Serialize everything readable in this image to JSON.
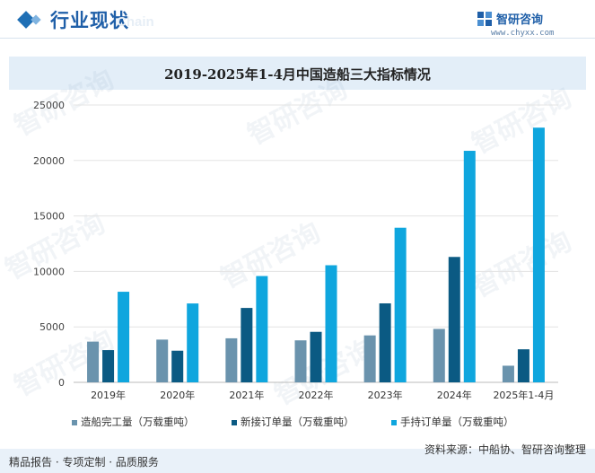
{
  "header": {
    "title": "行业现状",
    "ghost_text": "Chain"
  },
  "logo": {
    "name": "智研咨询",
    "url": "www.chyxx.com",
    "icon": "zhiyan-logo-icon"
  },
  "watermark": "智研咨询",
  "footer": {
    "left": "精品报告 · 专项定制 · 品质服务",
    "right": "资料来源：中船协、智研咨询整理"
  },
  "chart_data": {
    "type": "bar",
    "title": "2019-2025年1-4月中国造船三大指标情况",
    "categories": [
      "2019年",
      "2020年",
      "2021年",
      "2022年",
      "2023年",
      "2024年",
      "2025年1-4月"
    ],
    "series": [
      {
        "name": "造船完工量（万载重吨）",
        "color": "#6a93ad",
        "values": [
          3672,
          3853,
          3970,
          3786,
          4232,
          4818,
          1500
        ]
      },
      {
        "name": "新接订单量（万载重吨）",
        "color": "#0b5a83",
        "values": [
          2907,
          2853,
          6707,
          4552,
          7120,
          11305,
          2980
        ]
      },
      {
        "name": "手持订单量（万载重吨）",
        "color": "#0fa6de",
        "values": [
          8166,
          7111,
          9584,
          10557,
          13939,
          20872,
          22960
        ]
      }
    ],
    "ylim": [
      0,
      25000
    ],
    "yticks": [
      "0",
      "5000",
      "10000",
      "15000",
      "20000",
      "25000"
    ],
    "grid": true,
    "legend": "bottom"
  }
}
